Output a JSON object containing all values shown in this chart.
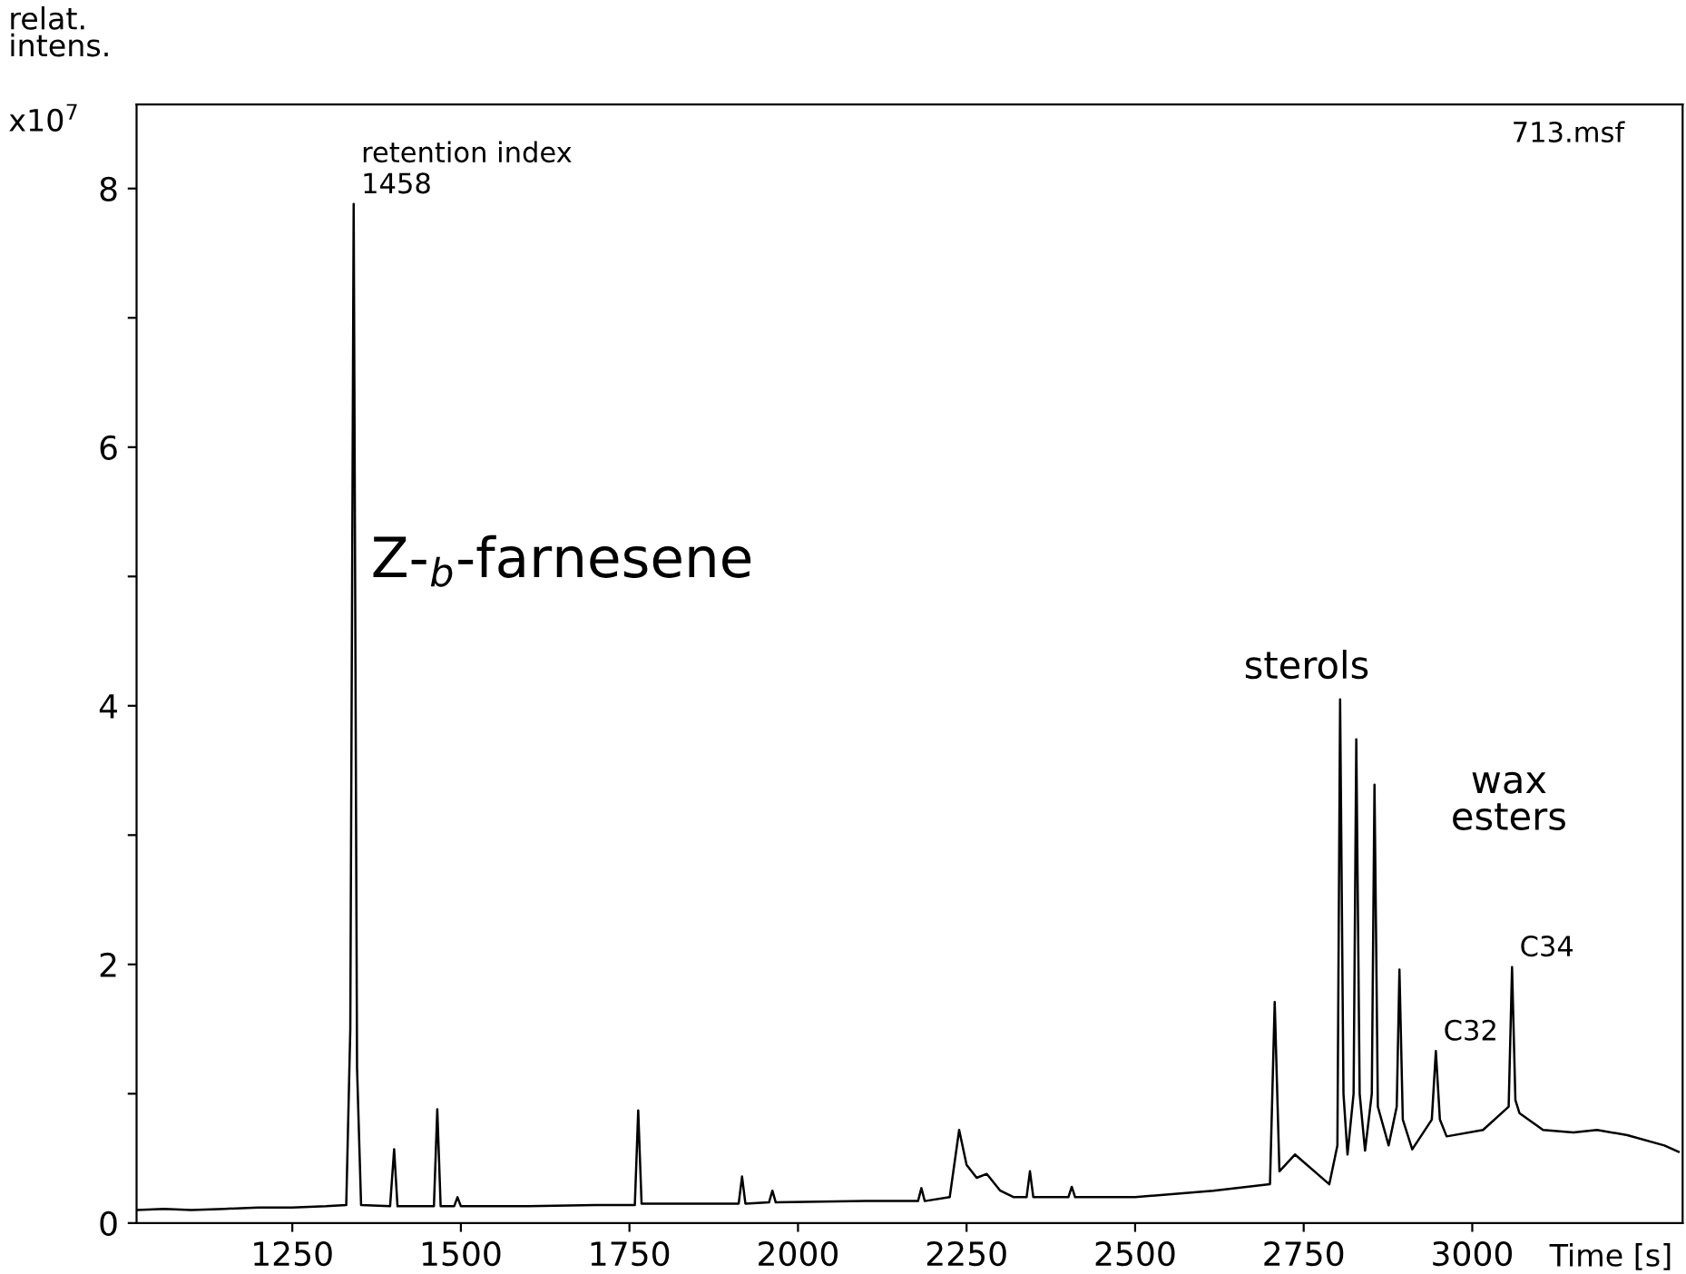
{
  "chart_data": {
    "type": "line",
    "ylabel": "relat.\nintens.",
    "xlabel": "Time [s]",
    "x": [
      1019,
      1060,
      1100,
      1150,
      1200,
      1250,
      1300,
      1330,
      1336,
      1341,
      1346,
      1352,
      1395,
      1401,
      1406,
      1460,
      1465,
      1470,
      1490,
      1495,
      1500,
      1600,
      1700,
      1758,
      1763,
      1768,
      1850,
      1912,
      1917,
      1922,
      1957,
      1962,
      1967,
      2100,
      2178,
      2183,
      2188,
      2225,
      2239,
      2250,
      2265,
      2280,
      2300,
      2320,
      2339,
      2344,
      2349,
      2401,
      2406,
      2411,
      2500,
      2616,
      2700,
      2707,
      2714,
      2737,
      2788,
      2800,
      2804,
      2809,
      2815,
      2824,
      2828,
      2833,
      2841,
      2851,
      2855,
      2860,
      2876,
      2888,
      2892,
      2897,
      2911,
      2940,
      2946,
      2952,
      2962,
      3016,
      3054,
      3059,
      3064,
      3070,
      3105,
      3150,
      3185,
      3230,
      3285,
      3306
    ],
    "series": [
      {
        "color": "#000000",
        "values": [
          0.1,
          0.11,
          0.1,
          0.11,
          0.12,
          0.12,
          0.13,
          0.14,
          1.5,
          7.88,
          1.2,
          0.14,
          0.13,
          0.57,
          0.13,
          0.13,
          0.88,
          0.13,
          0.13,
          0.2,
          0.13,
          0.13,
          0.14,
          0.14,
          0.87,
          0.15,
          0.15,
          0.15,
          0.36,
          0.15,
          0.16,
          0.25,
          0.16,
          0.17,
          0.17,
          0.27,
          0.17,
          0.2,
          0.72,
          0.45,
          0.35,
          0.38,
          0.25,
          0.2,
          0.2,
          0.4,
          0.2,
          0.2,
          0.28,
          0.2,
          0.2,
          0.25,
          0.3,
          1.71,
          0.4,
          0.53,
          0.3,
          0.6,
          4.05,
          1.0,
          0.53,
          1.0,
          3.74,
          1.0,
          0.56,
          1.0,
          3.39,
          0.9,
          0.6,
          0.9,
          1.96,
          0.8,
          0.57,
          0.8,
          1.33,
          0.8,
          0.67,
          0.72,
          0.9,
          1.98,
          0.95,
          0.85,
          0.72,
          0.7,
          0.72,
          0.68,
          0.6,
          0.55
        ]
      }
    ],
    "xlim": [
      1019,
      3312
    ],
    "xticks": [
      1250,
      1500,
      1750,
      2000,
      2250,
      2500,
      2750,
      3000
    ],
    "ylim": [
      0,
      8.65
    ],
    "yticks": [
      0,
      {
        "value": 1,
        "label": null
      },
      2,
      {
        "value": 3,
        "label": null
      },
      4,
      {
        "value": 5,
        "label": null
      },
      6,
      {
        "value": 7,
        "label": null
      },
      8
    ],
    "grid": false,
    "legend": false,
    "marker": "none",
    "line_style": "solid",
    "annotations": [
      {
        "text": "retention index\n1458",
        "x": 1341,
        "y": 7.88
      },
      {
        "text": "C32",
        "x": 2946,
        "y": 1.33
      },
      {
        "text": "C34",
        "x": 3059,
        "y": 1.98
      },
      "x10$^{7}$",
      "713.msf",
      "Z-$_{b}$-farnesene",
      "sterols",
      "wax\nesters"
    ]
  }
}
